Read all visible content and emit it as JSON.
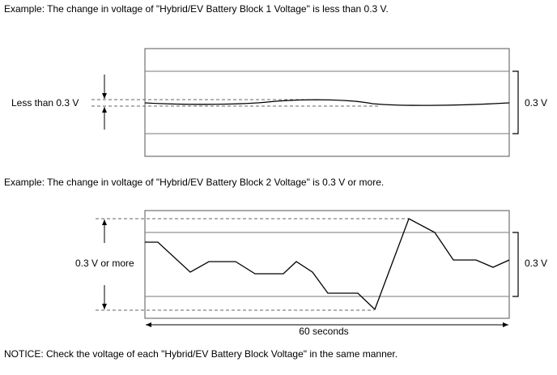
{
  "example1": {
    "caption": "Example: The change in voltage of \"Hybrid/EV Battery Block 1 Voltage\" is less than 0.3 V.",
    "left_label": "Less than 0.3 V",
    "right_label": "0.3 V"
  },
  "example2": {
    "caption": "Example: The change in voltage of \"Hybrid/EV Battery Block 2 Voltage\" is 0.3 V or more.",
    "left_label": "0.3 V or more",
    "right_label": "0.3 V",
    "time_label": "60 seconds"
  },
  "notice": "NOTICE: Check the voltage of each \"Hybrid/EV Battery Block Voltage\" in the same manner."
}
